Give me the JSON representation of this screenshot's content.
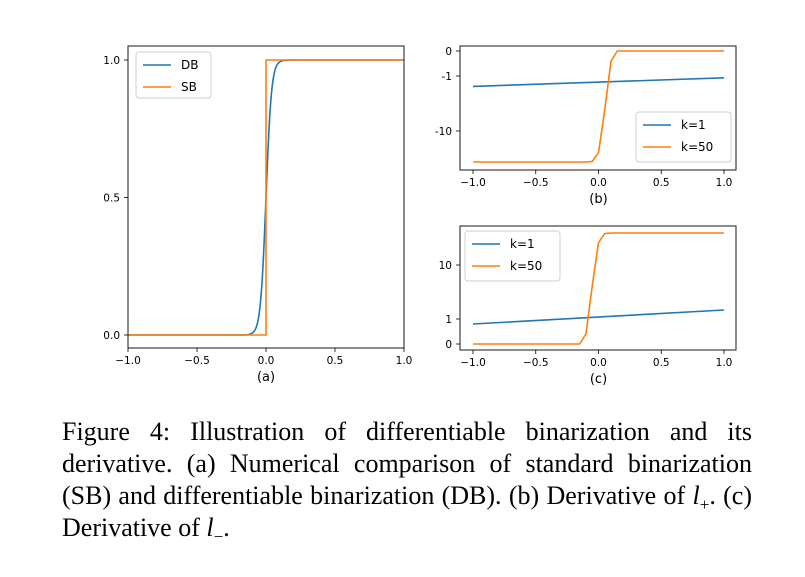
{
  "caption": {
    "prefix": "Figure 4: Illustration of differentiable binarization and its derivative. (a) Numerical comparison of standard binarization (SB) and differentiable binarization (DB). (b) Derivative of ",
    "l_symbol": "l",
    "plus_sub": "+",
    "middle": ". (c) Derivative of ",
    "minus_sub": "−",
    "end": "."
  },
  "chart_data": [
    {
      "id": "a",
      "type": "line",
      "subtitle": "(a)",
      "xlim": [
        -1.0,
        1.0
      ],
      "ylim": [
        0.0,
        1.0
      ],
      "xticks": [
        {
          "v": -1.0,
          "label": "−1.0"
        },
        {
          "v": -0.5,
          "label": "−0.5"
        },
        {
          "v": 0.0,
          "label": "0.0"
        },
        {
          "v": 0.5,
          "label": "0.5"
        },
        {
          "v": 1.0,
          "label": "1.0"
        }
      ],
      "yticks": [
        {
          "v": 0.0,
          "label": "0.0"
        },
        {
          "v": 0.5,
          "label": "0.5"
        },
        {
          "v": 1.0,
          "label": "1.0"
        }
      ],
      "legend": "top-left",
      "series": [
        {
          "name": "DB",
          "color": "#1f77b4",
          "kind": "sigmoid",
          "k": 50
        },
        {
          "name": "SB",
          "color": "#ff7f0e",
          "kind": "step"
        }
      ]
    },
    {
      "id": "b",
      "type": "line",
      "subtitle": "(b)",
      "xlim": [
        -1.0,
        1.0
      ],
      "ylim": [
        -16,
        0
      ],
      "xticks": [
        {
          "v": -1.0,
          "label": "−1.0"
        },
        {
          "v": -0.5,
          "label": "−0.5"
        },
        {
          "v": 0.0,
          "label": "0.0"
        },
        {
          "v": 0.5,
          "label": "0.5"
        },
        {
          "v": 1.0,
          "label": "1.0"
        }
      ],
      "yticks": [
        {
          "v": 0,
          "label": "0"
        },
        {
          "v": -1,
          "label": "-1"
        },
        {
          "v": -10,
          "label": "-10"
        }
      ],
      "legend": "lower-right",
      "series": [
        {
          "name": "k=1",
          "color": "#1f77b4",
          "points": [
            [
              -1.0,
              -2.7
            ],
            [
              1.0,
              -1.3
            ]
          ]
        },
        {
          "name": "k=50",
          "color": "#ff7f0e",
          "points": [
            [
              -1.0,
              -16.0
            ],
            [
              -0.1,
              -16.0
            ],
            [
              -0.05,
              -15.9
            ],
            [
              0.0,
              -14.2
            ],
            [
              0.05,
              -6.5
            ],
            [
              0.1,
              -0.4
            ],
            [
              0.15,
              0.0
            ],
            [
              1.0,
              0.0
            ]
          ]
        }
      ]
    },
    {
      "id": "c",
      "type": "line",
      "subtitle": "(c)",
      "xlim": [
        -1.0,
        1.0
      ],
      "ylim": [
        0,
        16
      ],
      "xticks": [
        {
          "v": -1.0,
          "label": "−1.0"
        },
        {
          "v": -0.5,
          "label": "−0.5"
        },
        {
          "v": 0.0,
          "label": "0.0"
        },
        {
          "v": 0.5,
          "label": "0.5"
        },
        {
          "v": 1.0,
          "label": "1.0"
        }
      ],
      "yticks": [
        {
          "v": 0,
          "label": "0"
        },
        {
          "v": 1,
          "label": "1"
        },
        {
          "v": 10,
          "label": "10"
        }
      ],
      "legend": "top-left",
      "series": [
        {
          "name": "k=1",
          "color": "#1f77b4",
          "points": [
            [
              -1.0,
              0.8
            ],
            [
              1.0,
              2.5
            ]
          ]
        },
        {
          "name": "k=50",
          "color": "#ff7f0e",
          "points": [
            [
              -1.0,
              0.0
            ],
            [
              -0.15,
              0.0
            ],
            [
              -0.1,
              0.4
            ],
            [
              -0.05,
              6.5
            ],
            [
              0.0,
              14.2
            ],
            [
              0.05,
              15.9
            ],
            [
              0.1,
              16.0
            ],
            [
              1.0,
              16.0
            ]
          ]
        }
      ]
    }
  ]
}
